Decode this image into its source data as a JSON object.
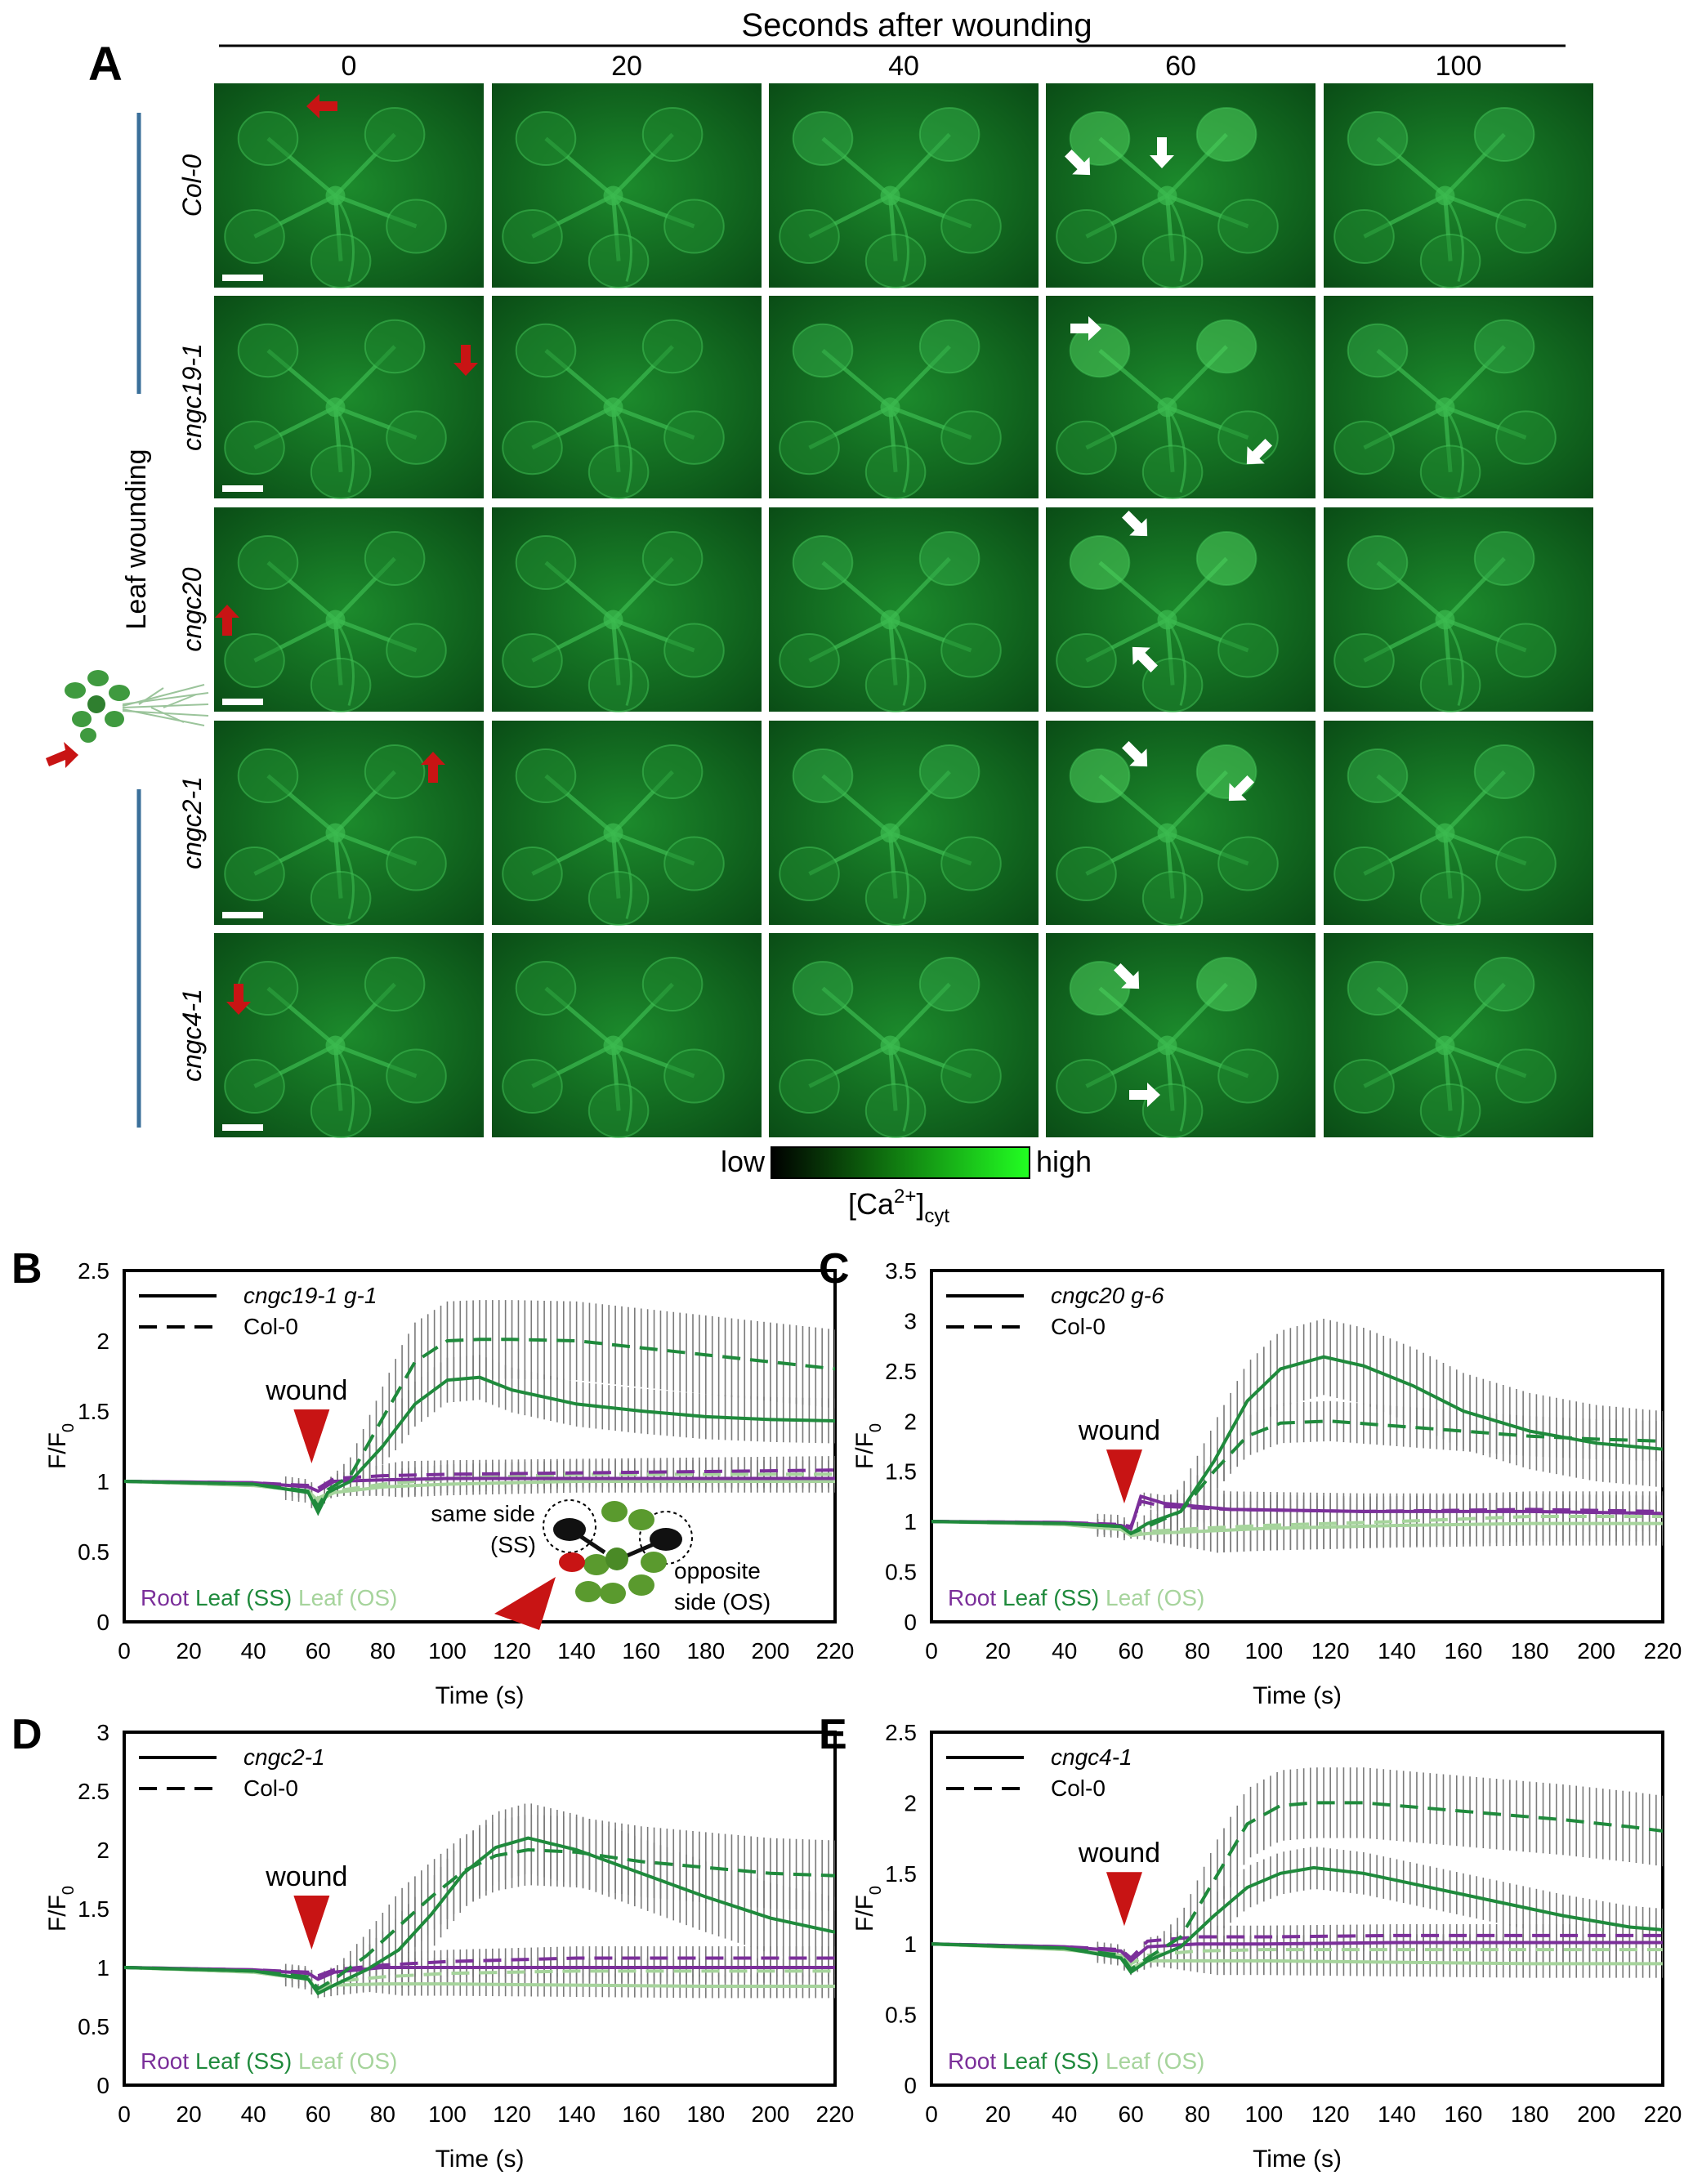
{
  "panel_a": {
    "letter": "A",
    "header": "Seconds after wounding",
    "times": [
      "0",
      "20",
      "40",
      "60",
      "100"
    ],
    "side_label": "Leaf wounding",
    "genotypes": [
      "Col-0",
      "cngc19-1",
      "cngc20",
      "cngc2-1",
      "cngc4-1"
    ],
    "colorbar": {
      "low": "low",
      "high": "high",
      "label": "[Ca",
      "sup": "2+",
      "close": "]",
      "sub": "cyt"
    },
    "colors": {
      "tile": "#0f6a1e",
      "tile_bright": "#2fb34a",
      "wound_arrow": "#c81414",
      "response_arrow": "#ffffff",
      "bar_line": "#3a6f9a"
    }
  },
  "chart_data": [
    {
      "panel": "B",
      "type": "line",
      "legend": [
        {
          "style": "solid",
          "label": "cngc19-1 g-1"
        },
        {
          "style": "dashed",
          "label": "Col-0"
        }
      ],
      "tissue_labels": [
        "Root",
        "Leaf (SS)",
        "Leaf (OS)"
      ],
      "annotation": "wound",
      "inset": {
        "same": "same side",
        "same_abbr": "(SS)",
        "opp": "opposite",
        "opp_abbr": "side (OS)"
      },
      "xlabel": "Time (s)",
      "ylabel": "F/F",
      "xlim": [
        0,
        220
      ],
      "ylim": [
        0,
        2.5
      ],
      "xticks": [
        "0",
        "20",
        "40",
        "60",
        "80",
        "100",
        "120",
        "140",
        "160",
        "180",
        "200",
        "220"
      ],
      "yticks": [
        "0",
        "0.5",
        "1",
        "1.5",
        "2",
        "2.5"
      ],
      "series": [
        {
          "tissue": "leaf_ss",
          "style": "dashed",
          "x": [
            0,
            40,
            57,
            60,
            63,
            70,
            80,
            90,
            100,
            110,
            120,
            140,
            160,
            180,
            200,
            220
          ],
          "y": [
            1.0,
            0.98,
            0.93,
            0.82,
            0.94,
            1.04,
            1.45,
            1.85,
            2.0,
            2.01,
            2.01,
            2.0,
            1.95,
            1.9,
            1.85,
            1.8
          ],
          "err": 0.28
        },
        {
          "tissue": "leaf_ss",
          "style": "solid",
          "x": [
            0,
            40,
            57,
            60,
            63,
            70,
            80,
            90,
            100,
            110,
            120,
            140,
            160,
            180,
            200,
            220
          ],
          "y": [
            1.0,
            0.98,
            0.92,
            0.78,
            0.92,
            1.0,
            1.25,
            1.55,
            1.72,
            1.74,
            1.65,
            1.55,
            1.5,
            1.46,
            1.44,
            1.43
          ],
          "err": 0.16
        },
        {
          "tissue": "root",
          "style": "dashed",
          "x": [
            0,
            40,
            57,
            60,
            65,
            80,
            100,
            140,
            180,
            220
          ],
          "y": [
            1.0,
            0.99,
            0.97,
            0.95,
            1.02,
            1.04,
            1.05,
            1.06,
            1.07,
            1.08
          ],
          "err": 0.1
        },
        {
          "tissue": "root",
          "style": "solid",
          "x": [
            0,
            40,
            57,
            60,
            65,
            80,
            100,
            140,
            180,
            220
          ],
          "y": [
            1.0,
            0.99,
            0.96,
            0.93,
            1.0,
            1.01,
            1.02,
            1.02,
            1.02,
            1.02
          ],
          "err": 0.06
        },
        {
          "tissue": "leaf_os",
          "style": "dashed",
          "x": [
            0,
            40,
            57,
            60,
            65,
            80,
            100,
            140,
            180,
            220
          ],
          "y": [
            1.0,
            0.97,
            0.93,
            0.88,
            0.93,
            0.98,
            1.02,
            1.05,
            1.05,
            1.05
          ],
          "err": 0.1
        },
        {
          "tissue": "leaf_os",
          "style": "solid",
          "x": [
            0,
            40,
            57,
            60,
            65,
            80,
            100,
            140,
            180,
            220
          ],
          "y": [
            1.0,
            0.97,
            0.93,
            0.86,
            0.92,
            0.96,
            0.98,
            1.0,
            1.0,
            1.0
          ],
          "err": 0.08
        }
      ]
    },
    {
      "panel": "C",
      "type": "line",
      "legend": [
        {
          "style": "solid",
          "label": "cngc20 g-6"
        },
        {
          "style": "dashed",
          "label": "Col-0"
        }
      ],
      "tissue_labels": [
        "Root",
        "Leaf (SS)",
        "Leaf (OS)"
      ],
      "annotation": "wound",
      "xlabel": "Time (s)",
      "ylabel": "F/F",
      "xlim": [
        0,
        220
      ],
      "ylim": [
        0,
        3.5
      ],
      "xticks": [
        "0",
        "20",
        "40",
        "60",
        "80",
        "100",
        "120",
        "140",
        "160",
        "180",
        "200",
        "220"
      ],
      "yticks": [
        "0",
        "0.5",
        "1",
        "1.5",
        "2",
        "2.5",
        "3",
        "3.5"
      ],
      "series": [
        {
          "tissue": "leaf_ss",
          "style": "dashed",
          "x": [
            0,
            40,
            57,
            60,
            65,
            75,
            85,
            95,
            105,
            120,
            140,
            160,
            180,
            200,
            220
          ],
          "y": [
            1.0,
            0.98,
            0.95,
            0.88,
            0.95,
            1.1,
            1.5,
            1.85,
            1.98,
            2.0,
            1.95,
            1.9,
            1.85,
            1.82,
            1.8
          ],
          "err": 0.2
        },
        {
          "tissue": "leaf_ss",
          "style": "solid",
          "x": [
            0,
            40,
            57,
            60,
            65,
            75,
            85,
            95,
            105,
            118,
            130,
            145,
            160,
            180,
            200,
            220
          ],
          "y": [
            1.0,
            0.98,
            0.95,
            0.88,
            0.98,
            1.1,
            1.6,
            2.2,
            2.52,
            2.64,
            2.55,
            2.35,
            2.1,
            1.9,
            1.78,
            1.72
          ],
          "err": 0.38
        },
        {
          "tissue": "root",
          "style": "dashed",
          "x": [
            0,
            40,
            57,
            60,
            63,
            70,
            90,
            130,
            180,
            220
          ],
          "y": [
            1.0,
            0.99,
            0.97,
            0.95,
            1.2,
            1.15,
            1.12,
            1.1,
            1.12,
            1.1
          ],
          "err": 0.15
        },
        {
          "tissue": "root",
          "style": "solid",
          "x": [
            0,
            40,
            57,
            60,
            63,
            70,
            90,
            130,
            180,
            220
          ],
          "y": [
            1.0,
            0.99,
            0.96,
            0.93,
            1.25,
            1.18,
            1.12,
            1.1,
            1.1,
            1.08
          ],
          "err": 0.18
        },
        {
          "tissue": "leaf_os",
          "style": "dashed",
          "x": [
            0,
            40,
            57,
            60,
            65,
            80,
            100,
            140,
            180,
            220
          ],
          "y": [
            1.0,
            0.97,
            0.93,
            0.88,
            0.9,
            0.93,
            0.96,
            1.0,
            1.05,
            1.05
          ],
          "err": 0.25
        },
        {
          "tissue": "leaf_os",
          "style": "solid",
          "x": [
            0,
            40,
            57,
            60,
            65,
            80,
            100,
            140,
            180,
            220
          ],
          "y": [
            1.0,
            0.97,
            0.92,
            0.86,
            0.88,
            0.9,
            0.93,
            0.96,
            0.98,
            0.98
          ],
          "err": 0.22
        }
      ]
    },
    {
      "panel": "D",
      "type": "line",
      "legend": [
        {
          "style": "solid",
          "label": "cngc2-1"
        },
        {
          "style": "dashed",
          "label": "Col-0"
        }
      ],
      "tissue_labels": [
        "Root",
        "Leaf (SS)",
        "Leaf (OS)"
      ],
      "annotation": "wound",
      "xlabel": "Time (s)",
      "ylabel": "F/F",
      "xlim": [
        0,
        220
      ],
      "ylim": [
        0,
        3
      ],
      "xticks": [
        "0",
        "20",
        "40",
        "60",
        "80",
        "100",
        "120",
        "140",
        "160",
        "180",
        "200",
        "220"
      ],
      "yticks": [
        "0",
        "0.5",
        "1",
        "1.5",
        "2",
        "2.5",
        "3"
      ],
      "series": [
        {
          "tissue": "leaf_ss",
          "style": "dashed",
          "x": [
            0,
            40,
            57,
            60,
            65,
            75,
            85,
            95,
            105,
            115,
            125,
            140,
            160,
            180,
            200,
            220
          ],
          "y": [
            1.0,
            0.97,
            0.92,
            0.82,
            0.9,
            1.1,
            1.35,
            1.6,
            1.82,
            1.95,
            2.0,
            1.98,
            1.9,
            1.85,
            1.8,
            1.78
          ],
          "err": 0.3
        },
        {
          "tissue": "leaf_ss",
          "style": "solid",
          "x": [
            0,
            40,
            57,
            60,
            65,
            75,
            85,
            95,
            105,
            115,
            125,
            140,
            160,
            180,
            200,
            220
          ],
          "y": [
            1.0,
            0.97,
            0.9,
            0.78,
            0.85,
            0.98,
            1.15,
            1.45,
            1.8,
            2.02,
            2.1,
            2.0,
            1.8,
            1.6,
            1.42,
            1.3
          ],
          "err": 0.3
        },
        {
          "tissue": "root",
          "style": "dashed",
          "x": [
            0,
            40,
            57,
            60,
            65,
            80,
            100,
            140,
            180,
            220
          ],
          "y": [
            1.0,
            0.98,
            0.96,
            0.93,
            0.98,
            1.02,
            1.05,
            1.08,
            1.08,
            1.08
          ],
          "err": 0.1
        },
        {
          "tissue": "root",
          "style": "solid",
          "x": [
            0,
            40,
            57,
            60,
            65,
            80,
            100,
            140,
            180,
            220
          ],
          "y": [
            1.0,
            0.98,
            0.95,
            0.9,
            0.96,
            1.0,
            1.0,
            1.0,
            1.0,
            1.0
          ],
          "err": 0.08
        },
        {
          "tissue": "leaf_os",
          "style": "dashed",
          "x": [
            0,
            40,
            57,
            60,
            65,
            80,
            100,
            140,
            180,
            220
          ],
          "y": [
            1.0,
            0.96,
            0.9,
            0.82,
            0.88,
            0.92,
            0.95,
            0.97,
            0.97,
            0.97
          ],
          "err": 0.1
        },
        {
          "tissue": "leaf_os",
          "style": "solid",
          "x": [
            0,
            40,
            57,
            60,
            65,
            80,
            100,
            140,
            180,
            220
          ],
          "y": [
            1.0,
            0.96,
            0.9,
            0.8,
            0.85,
            0.86,
            0.86,
            0.85,
            0.84,
            0.84
          ],
          "err": 0.1
        }
      ]
    },
    {
      "panel": "E",
      "type": "line",
      "legend": [
        {
          "style": "solid",
          "label": "cngc4-1"
        },
        {
          "style": "dashed",
          "label": "Col-0"
        }
      ],
      "tissue_labels": [
        "Root",
        "Leaf (SS)",
        "Leaf (OS)"
      ],
      "annotation": "wound",
      "xlabel": "Time (s)",
      "ylabel": "F/F",
      "xlim": [
        0,
        220
      ],
      "ylim": [
        0,
        2.5
      ],
      "xticks": [
        "0",
        "20",
        "40",
        "60",
        "80",
        "100",
        "120",
        "140",
        "160",
        "180",
        "200",
        "220"
      ],
      "yticks": [
        "0",
        "0.5",
        "1",
        "1.5",
        "2",
        "2.5"
      ],
      "series": [
        {
          "tissue": "leaf_ss",
          "style": "dashed",
          "x": [
            0,
            40,
            57,
            60,
            65,
            75,
            85,
            95,
            105,
            115,
            130,
            150,
            170,
            190,
            210,
            220
          ],
          "y": [
            1.0,
            0.97,
            0.92,
            0.82,
            0.9,
            1.05,
            1.45,
            1.85,
            1.98,
            2.0,
            2.0,
            1.96,
            1.92,
            1.88,
            1.83,
            1.8
          ],
          "err": 0.25
        },
        {
          "tissue": "leaf_ss",
          "style": "solid",
          "x": [
            0,
            40,
            57,
            60,
            65,
            75,
            85,
            95,
            105,
            115,
            130,
            150,
            170,
            190,
            210,
            220
          ],
          "y": [
            1.0,
            0.97,
            0.9,
            0.8,
            0.88,
            0.98,
            1.2,
            1.4,
            1.5,
            1.54,
            1.5,
            1.4,
            1.3,
            1.2,
            1.12,
            1.1
          ],
          "err": 0.15
        },
        {
          "tissue": "root",
          "style": "dashed",
          "x": [
            0,
            40,
            57,
            60,
            65,
            80,
            100,
            140,
            180,
            220
          ],
          "y": [
            1.0,
            0.98,
            0.96,
            0.9,
            1.02,
            1.05,
            1.05,
            1.06,
            1.06,
            1.06
          ],
          "err": 0.08
        },
        {
          "tissue": "root",
          "style": "solid",
          "x": [
            0,
            40,
            57,
            60,
            65,
            80,
            100,
            140,
            180,
            220
          ],
          "y": [
            1.0,
            0.98,
            0.95,
            0.88,
            0.98,
            1.0,
            1.0,
            1.01,
            1.01,
            1.01
          ],
          "err": 0.06
        },
        {
          "tissue": "leaf_os",
          "style": "dashed",
          "x": [
            0,
            40,
            57,
            60,
            65,
            80,
            100,
            140,
            180,
            220
          ],
          "y": [
            1.0,
            0.97,
            0.93,
            0.86,
            0.92,
            0.95,
            0.96,
            0.96,
            0.96,
            0.96
          ],
          "err": 0.1
        },
        {
          "tissue": "leaf_os",
          "style": "solid",
          "x": [
            0,
            40,
            57,
            60,
            65,
            80,
            100,
            140,
            180,
            220
          ],
          "y": [
            1.0,
            0.96,
            0.92,
            0.83,
            0.88,
            0.88,
            0.88,
            0.87,
            0.86,
            0.86
          ],
          "err": 0.1
        }
      ]
    }
  ],
  "series_colors": {
    "root": "#7b2f9a",
    "leaf_ss": "#1f8a3c",
    "leaf_os": "#a6d49c",
    "errbar": "#7a7a7a"
  }
}
